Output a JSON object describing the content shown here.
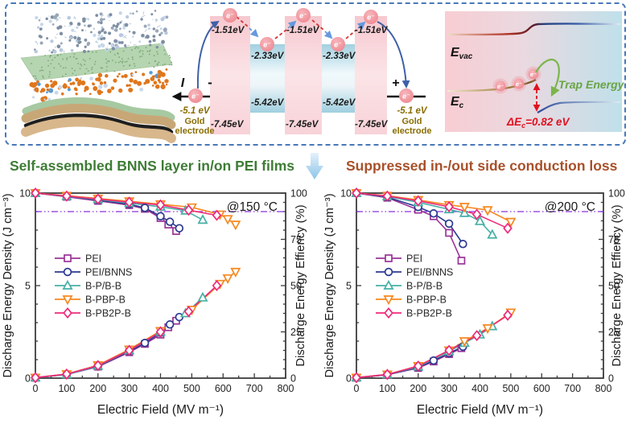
{
  "section_titles": {
    "left": "Self-assembled BNNS layer in/on PEI films",
    "right": "Suppressed in-/out side conduction loss"
  },
  "band": {
    "current_label": "I",
    "minus": "-",
    "plus": "+",
    "electron": "e⁻",
    "pei_top": "-1.51eV",
    "bnns_top": "-2.33eV",
    "bnns_bottom": "-5.42eV",
    "pei_bottom": "-7.45eV",
    "electrode_level": "-5.1 eV",
    "electrode_line1": "Gold",
    "electrode_line2": "electrode"
  },
  "energy": {
    "e": "E",
    "vac_sub": "vac",
    "c_sub": "c",
    "trap_label": "Trap Energy",
    "delta_prefix": "ΔE",
    "delta_sub": "c",
    "delta_value": "=0.82 eV"
  },
  "colors": {
    "title_left": "#3e7c35",
    "title_right": "#a8502a",
    "ref_line": "#8833dd",
    "axis": "#3c3c3c",
    "border_dash": "#4878b8"
  },
  "chart_data": [
    {
      "type": "line",
      "annotation": "@150 °C",
      "xlabel": "Electric Field (MV m⁻¹)",
      "ylabel_left": "Discharge Energy Density (J cm⁻³)",
      "ylabel_right": "Discharge Energy Effiency (%)",
      "xlim": [
        0,
        800
      ],
      "ylim_left": [
        0,
        10
      ],
      "ylim_right": [
        0,
        100
      ],
      "xticks": [
        0,
        100,
        200,
        300,
        400,
        500,
        600,
        700,
        800
      ],
      "yticks_left": [
        0,
        5,
        10
      ],
      "yticks_right": [
        0,
        25,
        50,
        75,
        100
      ],
      "ref_line_right": 90,
      "grid": false,
      "legend_position": "upper-left-inside",
      "series": [
        {
          "name": "PEI",
          "color": "#9a3397",
          "marker": "square",
          "x": [
            0,
            100,
            200,
            300,
            350,
            400,
            425,
            450
          ],
          "efficiency": [
            100,
            98,
            95.8,
            93.5,
            91.5,
            86.5,
            83,
            79.5
          ],
          "density": [
            0.02,
            0.2,
            0.62,
            1.4,
            1.85,
            2.35,
            2.75,
            3.1
          ]
        },
        {
          "name": "PEI/BNNS",
          "color": "#2b3a8f",
          "marker": "circle",
          "x": [
            0,
            100,
            200,
            300,
            350,
            400,
            430,
            460
          ],
          "efficiency": [
            100,
            98.2,
            96.2,
            94,
            92,
            87.5,
            84.5,
            81
          ],
          "density": [
            0.02,
            0.2,
            0.64,
            1.45,
            1.9,
            2.45,
            2.9,
            3.3
          ]
        },
        {
          "name": "B-P/B-B",
          "color": "#45b0a5",
          "marker": "triangle-up",
          "x": [
            0,
            100,
            200,
            300,
            400,
            480,
            535
          ],
          "efficiency": [
            100,
            98.3,
            96.6,
            94.6,
            92.6,
            90.5,
            85.5
          ],
          "density": [
            0.03,
            0.2,
            0.66,
            1.5,
            2.5,
            3.5,
            4.35
          ]
        },
        {
          "name": "B-PBP-B",
          "color": "#f6881f",
          "marker": "triangle-down",
          "x": [
            0,
            100,
            200,
            300,
            400,
            500,
            590,
            615,
            640
          ],
          "efficiency": [
            100,
            98.6,
            97.1,
            95.6,
            94,
            92.3,
            88.5,
            86,
            83
          ],
          "density": [
            0.03,
            0.22,
            0.7,
            1.55,
            2.55,
            3.7,
            5.1,
            5.4,
            5.75
          ]
        },
        {
          "name": "B-PB2P-B",
          "color": "#ee2a7b",
          "marker": "diamond",
          "x": [
            0,
            100,
            200,
            300,
            400,
            490,
            580
          ],
          "efficiency": [
            100,
            98.4,
            96.8,
            95.1,
            93.6,
            90.8,
            88
          ],
          "density": [
            0.03,
            0.22,
            0.68,
            1.5,
            2.5,
            3.6,
            5.0
          ]
        }
      ]
    },
    {
      "type": "line",
      "annotation": "@200 °C",
      "xlabel": "Electric Field (MV m⁻¹)",
      "ylabel_left": "Discharge Energy Density (J cm⁻³)",
      "ylabel_right": "Discharge Energy Effiency (%)",
      "xlim": [
        0,
        800
      ],
      "ylim_left": [
        0,
        10
      ],
      "ylim_right": [
        0,
        100
      ],
      "xticks": [
        0,
        100,
        200,
        300,
        400,
        500,
        600,
        700,
        800
      ],
      "yticks_left": [
        0,
        5,
        10
      ],
      "yticks_right": [
        0,
        25,
        50,
        75,
        100
      ],
      "ref_line_right": 90,
      "grid": false,
      "legend_position": "upper-left-inside",
      "series": [
        {
          "name": "PEI",
          "color": "#9a3397",
          "marker": "square",
          "x": [
            0,
            100,
            200,
            250,
            300,
            340
          ],
          "efficiency": [
            100,
            97.5,
            91,
            87.5,
            78.5,
            63.5
          ],
          "density": [
            0.02,
            0.18,
            0.55,
            0.9,
            1.3,
            1.62
          ]
        },
        {
          "name": "PEI/BNNS",
          "color": "#2b3a8f",
          "marker": "circle",
          "x": [
            0,
            100,
            200,
            250,
            300,
            345
          ],
          "efficiency": [
            100,
            97.8,
            92.5,
            89,
            83.5,
            72.5
          ],
          "density": [
            0.02,
            0.18,
            0.58,
            0.95,
            1.35,
            1.7
          ]
        },
        {
          "name": "B-P/B-B",
          "color": "#45b0a5",
          "marker": "triangle-up",
          "x": [
            0,
            100,
            200,
            300,
            350,
            400,
            440
          ],
          "efficiency": [
            100,
            98.2,
            95,
            91.2,
            89.2,
            84.8,
            77.5
          ],
          "density": [
            0.03,
            0.2,
            0.62,
            1.45,
            1.9,
            2.35,
            2.8
          ]
        },
        {
          "name": "B-PBP-B",
          "color": "#f6881f",
          "marker": "triangle-down",
          "x": [
            0,
            100,
            200,
            300,
            350,
            425,
            500
          ],
          "efficiency": [
            100,
            98.6,
            96.3,
            93.6,
            92.6,
            90.8,
            84.5
          ],
          "density": [
            0.03,
            0.2,
            0.66,
            1.5,
            2.0,
            2.7,
            3.55
          ]
        },
        {
          "name": "B-PB2P-B",
          "color": "#ee2a7b",
          "marker": "diamond",
          "x": [
            0,
            100,
            200,
            300,
            390,
            490
          ],
          "efficiency": [
            100,
            98.4,
            95.8,
            92.6,
            88.5,
            81
          ],
          "density": [
            0.03,
            0.2,
            0.65,
            1.5,
            2.3,
            3.4
          ]
        }
      ]
    }
  ]
}
